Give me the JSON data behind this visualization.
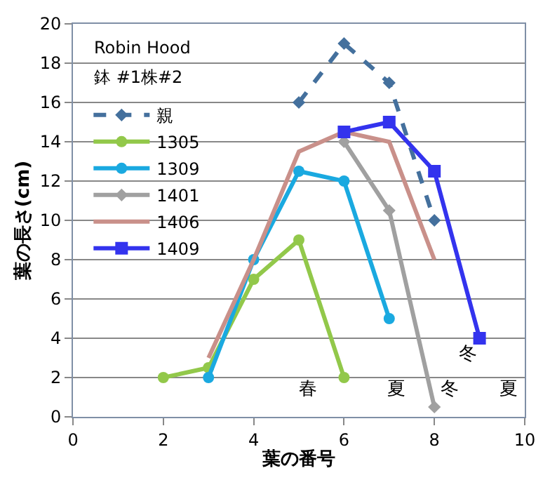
{
  "chart_data": {
    "type": "line",
    "xlabel": "葉の番号",
    "ylabel": "葉の長さ(cm)",
    "x": [
      2,
      3,
      4,
      5,
      6,
      7,
      8,
      9
    ],
    "xlim": [
      0,
      10
    ],
    "xticks": [
      0,
      2,
      4,
      6,
      8,
      10
    ],
    "ylim": [
      0,
      20
    ],
    "yticks": [
      0,
      2,
      4,
      6,
      8,
      10,
      12,
      14,
      16,
      18,
      20
    ],
    "grid": "y",
    "legend": "top left",
    "series": [
      {
        "name": "親",
        "color": "#44709d",
        "values": [
          null,
          null,
          null,
          16,
          19,
          17,
          10,
          null
        ],
        "marker": "diamond",
        "line_style": "dashed"
      },
      {
        "name": "1305",
        "color": "#92c84a",
        "values": [
          2,
          2.5,
          7,
          9,
          2,
          null,
          null,
          null
        ],
        "marker": "circle"
      },
      {
        "name": "1309",
        "color": "#1aa9e0",
        "values": [
          null,
          2,
          8,
          12.5,
          12,
          5,
          null,
          null
        ],
        "marker": "circle"
      },
      {
        "name": "1401",
        "color": "#a0a0a0",
        "values": [
          null,
          null,
          null,
          null,
          14,
          10.5,
          0.5,
          null
        ],
        "marker": "diamond"
      },
      {
        "name": "1406",
        "color": "#c9908a",
        "values": [
          null,
          3,
          8,
          13.5,
          14.5,
          14,
          8,
          null
        ],
        "marker": "none"
      },
      {
        "name": "1409",
        "color": "#3333ee",
        "values": [
          null,
          null,
          null,
          null,
          14.5,
          15,
          12.5,
          4
        ],
        "marker": "square"
      }
    ],
    "annotations": [
      "Robin Hood",
      "鉢 #1株#2",
      "春",
      "夏",
      "冬",
      "夏",
      "冬"
    ]
  }
}
